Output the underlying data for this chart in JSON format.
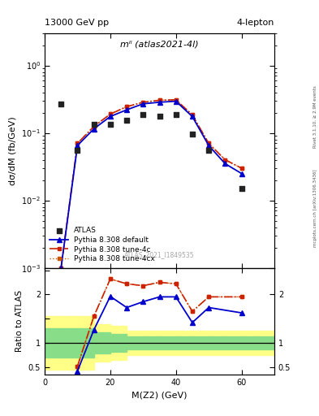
{
  "title_top": "13000 GeV pp",
  "title_right": "4-lepton",
  "annotation": "mˡˡ (atlas2021-4l)",
  "watermark": "ATLAS_2021_I1849535",
  "rivet_text": "Rivet 3.1.10, ≥ 2.9M events",
  "mcplots_text": "mcplots.cern.ch [arXiv:1306.3436]",
  "xlabel": "M(Z2) (GeV)",
  "ylabel": "dσ/dM (fb/GeV)",
  "ylabel_ratio": "Ratio to ATLAS",
  "xlim": [
    0,
    70
  ],
  "ylim_main": [
    0.001,
    3
  ],
  "ylim_ratio": [
    0.35,
    2.55
  ],
  "x_data": [
    5,
    10,
    15,
    20,
    25,
    30,
    35,
    40,
    45,
    50,
    55,
    60,
    65
  ],
  "atlas_y": [
    0.27,
    0.055,
    0.135,
    0.135,
    0.155,
    0.185,
    0.175,
    0.185,
    0.095,
    0.055,
    null,
    0.015,
    null
  ],
  "pythia_default_y": [
    0.001,
    0.065,
    0.115,
    0.175,
    0.22,
    0.27,
    0.285,
    0.295,
    0.175,
    0.065,
    0.035,
    0.025,
    null
  ],
  "pythia_4c_y": [
    0.001,
    0.07,
    0.125,
    0.19,
    0.245,
    0.285,
    0.305,
    0.31,
    0.185,
    0.07,
    0.04,
    0.03,
    null
  ],
  "pythia_4cx_y": [
    0.001,
    0.07,
    0.125,
    0.19,
    0.245,
    0.285,
    0.305,
    0.31,
    0.185,
    0.07,
    0.04,
    0.03,
    null
  ],
  "ratio_default_y": [
    null,
    0.42,
    1.27,
    1.96,
    1.73,
    1.85,
    1.95,
    1.95,
    1.42,
    1.73,
    null,
    1.62,
    null
  ],
  "ratio_4c_y": [
    null,
    0.52,
    1.55,
    2.32,
    2.22,
    2.18,
    2.25,
    2.22,
    1.65,
    1.95,
    null,
    1.95,
    null
  ],
  "ratio_4cx_y": [
    null,
    0.52,
    1.55,
    2.32,
    2.22,
    2.18,
    2.25,
    2.22,
    1.65,
    1.95,
    null,
    1.95,
    null
  ],
  "color_atlas": "#222222",
  "color_default": "#0000cc",
  "color_4c": "#cc2200",
  "color_4cx": "#cc5500",
  "band_x_edges": [
    0,
    5,
    10,
    15,
    20,
    25,
    30,
    35,
    40,
    45,
    50,
    55,
    60,
    65,
    70
  ],
  "band_yellow_lo": [
    0.45,
    0.45,
    0.45,
    0.62,
    0.65,
    0.75,
    0.75,
    0.75,
    0.75,
    0.75,
    0.75,
    0.75,
    0.75,
    0.75
  ],
  "band_yellow_hi": [
    1.55,
    1.55,
    1.55,
    1.38,
    1.35,
    1.25,
    1.25,
    1.25,
    1.25,
    1.25,
    1.25,
    1.25,
    1.25,
    1.25
  ],
  "band_green_lo": [
    0.7,
    0.7,
    0.7,
    0.78,
    0.82,
    0.87,
    0.87,
    0.87,
    0.87,
    0.87,
    0.87,
    0.87,
    0.87,
    0.87
  ],
  "band_green_hi": [
    1.3,
    1.3,
    1.3,
    1.22,
    1.18,
    1.13,
    1.13,
    1.13,
    1.13,
    1.13,
    1.13,
    1.13,
    1.13,
    1.13
  ]
}
